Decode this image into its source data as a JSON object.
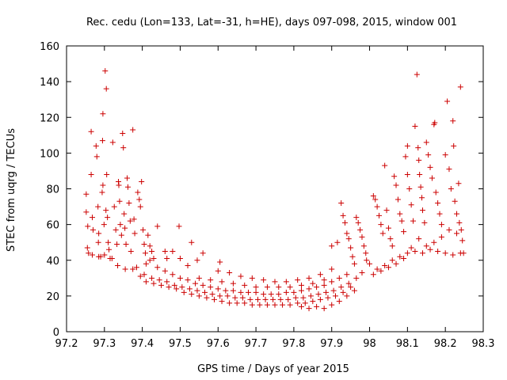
{
  "chart_data": {
    "type": "scatter",
    "title": "Rec. cedu (Lon=133, Lat=-31, h=HE), days 097-098, 2015, window 001",
    "xlabel": "GPS time / Days of year 2015",
    "ylabel": "STEC from uqrg / TECUs",
    "xlim": [
      97.2,
      98.3
    ],
    "ylim": [
      0,
      160
    ],
    "xticks": [
      97.2,
      97.3,
      97.4,
      97.5,
      97.6,
      97.7,
      97.8,
      97.9,
      98.0,
      98.1,
      98.2,
      98.3
    ],
    "xtick_labels": [
      "97.2",
      "97.3",
      "97.4",
      "97.5",
      "97.6",
      "97.7",
      "97.8",
      "97.9",
      "98",
      "98.1",
      "98.2",
      "98.3"
    ],
    "yticks": [
      0,
      20,
      40,
      60,
      80,
      100,
      120,
      140,
      160
    ],
    "ytick_labels": [
      "0",
      "20",
      "40",
      "60",
      "80",
      "100",
      "120",
      "140",
      "160"
    ],
    "grid": false,
    "marker": "+",
    "color": "#cc0000",
    "series": [
      {
        "name": "STEC",
        "points": [
          [
            97.252,
            77
          ],
          [
            97.252,
            67
          ],
          [
            97.256,
            59
          ],
          [
            97.255,
            47
          ],
          [
            97.258,
            44
          ],
          [
            97.265,
            112
          ],
          [
            97.265,
            88
          ],
          [
            97.268,
            64
          ],
          [
            97.27,
            57
          ],
          [
            97.278,
            104
          ],
          [
            97.28,
            98
          ],
          [
            97.283,
            70
          ],
          [
            97.285,
            55
          ],
          [
            97.284,
            50
          ],
          [
            97.29,
            42
          ],
          [
            97.296,
            122
          ],
          [
            97.295,
            107
          ],
          [
            97.296,
            82
          ],
          [
            97.294,
            78
          ],
          [
            97.299,
            60
          ],
          [
            97.302,
            146
          ],
          [
            97.305,
            136
          ],
          [
            97.306,
            88
          ],
          [
            97.304,
            68
          ],
          [
            97.308,
            64
          ],
          [
            97.31,
            50
          ],
          [
            97.312,
            46
          ],
          [
            97.315,
            41
          ],
          [
            97.322,
            106
          ],
          [
            97.326,
            70
          ],
          [
            97.33,
            57
          ],
          [
            97.333,
            49
          ],
          [
            97.337,
            84
          ],
          [
            97.338,
            82
          ],
          [
            97.34,
            73
          ],
          [
            97.342,
            60
          ],
          [
            97.345,
            54
          ],
          [
            97.348,
            111
          ],
          [
            97.35,
            103
          ],
          [
            97.352,
            66
          ],
          [
            97.354,
            58
          ],
          [
            97.357,
            49
          ],
          [
            97.36,
            86
          ],
          [
            97.362,
            81
          ],
          [
            97.365,
            72
          ],
          [
            97.368,
            62
          ],
          [
            97.37,
            45
          ],
          [
            97.375,
            113
          ],
          [
            97.378,
            63
          ],
          [
            97.38,
            55
          ],
          [
            97.388,
            78
          ],
          [
            97.392,
            74
          ],
          [
            97.395,
            70
          ],
          [
            97.398,
            84
          ],
          [
            97.402,
            57
          ],
          [
            97.405,
            49
          ],
          [
            97.408,
            44
          ],
          [
            97.41,
            38
          ],
          [
            97.415,
            54
          ],
          [
            97.42,
            48
          ],
          [
            97.425,
            45
          ],
          [
            97.43,
            41
          ],
          [
            97.44,
            59
          ],
          [
            97.46,
            45
          ],
          [
            97.465,
            41
          ],
          [
            97.48,
            45
          ],
          [
            97.497,
            59
          ],
          [
            97.5,
            41
          ],
          [
            97.52,
            37
          ],
          [
            97.53,
            50
          ],
          [
            97.545,
            40
          ],
          [
            97.56,
            44
          ],
          [
            97.605,
            39
          ],
          [
            97.268,
            43
          ],
          [
            97.285,
            42
          ],
          [
            97.3,
            43
          ],
          [
            97.32,
            41
          ],
          [
            97.335,
            37
          ],
          [
            97.355,
            35
          ],
          [
            97.375,
            35
          ],
          [
            97.395,
            31
          ],
          [
            97.41,
            28
          ],
          [
            97.43,
            27
          ],
          [
            97.45,
            26
          ],
          [
            97.47,
            25
          ],
          [
            97.49,
            24
          ],
          [
            97.51,
            22
          ],
          [
            97.53,
            21
          ],
          [
            97.55,
            20
          ],
          [
            97.57,
            19
          ],
          [
            97.59,
            18
          ],
          [
            97.61,
            17
          ],
          [
            97.63,
            16
          ],
          [
            97.65,
            16
          ],
          [
            97.67,
            16
          ],
          [
            97.69,
            15
          ],
          [
            97.71,
            15
          ],
          [
            97.73,
            15
          ],
          [
            97.75,
            15
          ],
          [
            97.77,
            15
          ],
          [
            97.79,
            15
          ],
          [
            97.81,
            16
          ],
          [
            97.83,
            16
          ],
          [
            97.85,
            17
          ],
          [
            97.87,
            18
          ],
          [
            97.89,
            19
          ],
          [
            97.91,
            20
          ],
          [
            97.93,
            22
          ],
          [
            97.95,
            25
          ],
          [
            97.385,
            36
          ],
          [
            97.405,
            32
          ],
          [
            97.425,
            30
          ],
          [
            97.445,
            29
          ],
          [
            97.465,
            28
          ],
          [
            97.485,
            26
          ],
          [
            97.505,
            25
          ],
          [
            97.525,
            24
          ],
          [
            97.545,
            23
          ],
          [
            97.565,
            22
          ],
          [
            97.585,
            21
          ],
          [
            97.605,
            20
          ],
          [
            97.625,
            20
          ],
          [
            97.645,
            19
          ],
          [
            97.665,
            19
          ],
          [
            97.685,
            18
          ],
          [
            97.705,
            18
          ],
          [
            97.725,
            18
          ],
          [
            97.745,
            18
          ],
          [
            97.765,
            18
          ],
          [
            97.785,
            18
          ],
          [
            97.805,
            19
          ],
          [
            97.825,
            19
          ],
          [
            97.845,
            20
          ],
          [
            97.865,
            21
          ],
          [
            97.885,
            22
          ],
          [
            97.905,
            23
          ],
          [
            97.925,
            25
          ],
          [
            97.945,
            27
          ],
          [
            97.965,
            30
          ],
          [
            97.98,
            33
          ],
          [
            97.42,
            40
          ],
          [
            97.44,
            36
          ],
          [
            97.46,
            34
          ],
          [
            97.48,
            32
          ],
          [
            97.5,
            30
          ],
          [
            97.52,
            29
          ],
          [
            97.54,
            27
          ],
          [
            97.56,
            26
          ],
          [
            97.58,
            25
          ],
          [
            97.6,
            24
          ],
          [
            97.62,
            23
          ],
          [
            97.64,
            23
          ],
          [
            97.66,
            22
          ],
          [
            97.68,
            22
          ],
          [
            97.7,
            22
          ],
          [
            97.72,
            21
          ],
          [
            97.74,
            21
          ],
          [
            97.76,
            21
          ],
          [
            97.78,
            22
          ],
          [
            97.8,
            22
          ],
          [
            97.82,
            23
          ],
          [
            97.84,
            24
          ],
          [
            97.86,
            25
          ],
          [
            97.88,
            26
          ],
          [
            97.9,
            28
          ],
          [
            97.92,
            30
          ],
          [
            97.94,
            32
          ],
          [
            97.55,
            30
          ],
          [
            97.58,
            29
          ],
          [
            97.61,
            28
          ],
          [
            97.64,
            27
          ],
          [
            97.67,
            26
          ],
          [
            97.7,
            25
          ],
          [
            97.73,
            25
          ],
          [
            97.76,
            25
          ],
          [
            97.79,
            25
          ],
          [
            97.82,
            26
          ],
          [
            97.85,
            27
          ],
          [
            97.88,
            29
          ],
          [
            97.6,
            34
          ],
          [
            97.63,
            33
          ],
          [
            97.66,
            31
          ],
          [
            97.69,
            30
          ],
          [
            97.72,
            29
          ],
          [
            97.75,
            28
          ],
          [
            97.78,
            28
          ],
          [
            97.81,
            29
          ],
          [
            97.84,
            30
          ],
          [
            97.87,
            32
          ],
          [
            97.9,
            35
          ],
          [
            97.88,
            13
          ],
          [
            97.86,
            14
          ],
          [
            97.84,
            13
          ],
          [
            97.82,
            14
          ],
          [
            97.9,
            15
          ],
          [
            97.92,
            17
          ],
          [
            97.94,
            20
          ],
          [
            97.96,
            23
          ],
          [
            97.9,
            48
          ],
          [
            97.915,
            50
          ],
          [
            97.925,
            72
          ],
          [
            97.93,
            65
          ],
          [
            97.935,
            61
          ],
          [
            97.94,
            55
          ],
          [
            97.945,
            52
          ],
          [
            97.95,
            47
          ],
          [
            97.955,
            42
          ],
          [
            97.96,
            38
          ],
          [
            97.965,
            64
          ],
          [
            97.97,
            61
          ],
          [
            97.975,
            57
          ],
          [
            97.98,
            53
          ],
          [
            97.985,
            48
          ],
          [
            97.99,
            44
          ],
          [
            97.992,
            40
          ],
          [
            98.01,
            76
          ],
          [
            98.015,
            74
          ],
          [
            98.02,
            70
          ],
          [
            98.025,
            65
          ],
          [
            98.03,
            60
          ],
          [
            98.035,
            55
          ],
          [
            98.04,
            93
          ],
          [
            98.045,
            68
          ],
          [
            98.05,
            58
          ],
          [
            98.055,
            52
          ],
          [
            98.06,
            48
          ],
          [
            98.065,
            87
          ],
          [
            98.07,
            82
          ],
          [
            98.075,
            74
          ],
          [
            98.08,
            66
          ],
          [
            98.085,
            62
          ],
          [
            98.09,
            56
          ],
          [
            98.095,
            98
          ],
          [
            98.1,
            104
          ],
          [
            98.1,
            88
          ],
          [
            98.105,
            80
          ],
          [
            98.11,
            71
          ],
          [
            98.115,
            62
          ],
          [
            98.12,
            115
          ],
          [
            98.125,
            144
          ],
          [
            98.128,
            103
          ],
          [
            98.13,
            96
          ],
          [
            98.132,
            88
          ],
          [
            98.135,
            81
          ],
          [
            98.138,
            75
          ],
          [
            98.14,
            68
          ],
          [
            98.145,
            61
          ],
          [
            98.15,
            106
          ],
          [
            98.155,
            99
          ],
          [
            98.16,
            92
          ],
          [
            98.165,
            86
          ],
          [
            98.17,
            116
          ],
          [
            98.172,
            117
          ],
          [
            98.175,
            78
          ],
          [
            98.18,
            72
          ],
          [
            98.185,
            66
          ],
          [
            98.19,
            60
          ],
          [
            98.2,
            99
          ],
          [
            98.205,
            129
          ],
          [
            98.21,
            91
          ],
          [
            98.215,
            80
          ],
          [
            98.22,
            118
          ],
          [
            98.222,
            104
          ],
          [
            98.225,
            73
          ],
          [
            98.23,
            66
          ],
          [
            98.235,
            83
          ],
          [
            98.237,
            61
          ],
          [
            98.24,
            137
          ],
          [
            98.242,
            57
          ],
          [
            98.245,
            51
          ],
          [
            98.248,
            44
          ],
          [
            98.0,
            38
          ],
          [
            98.02,
            35
          ],
          [
            98.04,
            37
          ],
          [
            98.06,
            40
          ],
          [
            98.08,
            42
          ],
          [
            98.1,
            44
          ],
          [
            98.12,
            45
          ],
          [
            98.14,
            44
          ],
          [
            98.16,
            46
          ],
          [
            98.18,
            45
          ],
          [
            98.2,
            44
          ],
          [
            98.22,
            43
          ],
          [
            98.24,
            44
          ],
          [
            98.01,
            32
          ],
          [
            98.03,
            34
          ],
          [
            98.05,
            36
          ],
          [
            98.07,
            38
          ],
          [
            98.09,
            41
          ],
          [
            98.11,
            47
          ],
          [
            98.13,
            52
          ],
          [
            98.15,
            48
          ],
          [
            98.17,
            50
          ],
          [
            98.19,
            53
          ],
          [
            98.21,
            57
          ],
          [
            98.23,
            55
          ]
        ]
      }
    ]
  }
}
